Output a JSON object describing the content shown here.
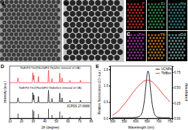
{
  "panel_labels": [
    "A",
    "B",
    "C",
    "D",
    "E"
  ],
  "eds_maps": [
    {
      "element": "F",
      "color": "#e0302a"
    },
    {
      "element": "Er",
      "color": "#3aa655"
    },
    {
      "element": "Na",
      "color": "#3f8f8f"
    },
    {
      "element": "Tm",
      "color": "#b03cb0"
    },
    {
      "element": "Yb",
      "color": "#e08a20"
    },
    {
      "element": "Gd",
      "color": "#7fb0b0"
    }
  ],
  "chart_data": [
    {
      "type": "line",
      "x_label": "2θ (degree)",
      "y_label": "Intensity (a.u.)",
      "xlim": [
        10,
        80
      ],
      "ylim": [
        0,
        11
      ],
      "xticks": [
        10,
        20,
        30,
        40,
        50,
        60,
        70,
        80
      ],
      "tick_labels": "x",
      "series": [
        {
          "name": "NaErF4:Tm@NaGdF4:Yb(after removal of OA)",
          "color": "#e8251f",
          "x": [
            10,
            16.5,
            17.2,
            18,
            29.5,
            30,
            30.4,
            30.8,
            31.3,
            34.3,
            34.8,
            35.3,
            43,
            43.5,
            44,
            46,
            46.5,
            47,
            52.7,
            53.2,
            53.7,
            54.7,
            55.2,
            55.7,
            61.5,
            62,
            62.5,
            70.5,
            71,
            71.5,
            80
          ],
          "values": [
            7.5,
            7.5,
            8.5,
            7.5,
            7.5,
            9.6,
            8.1,
            9.1,
            7.5,
            7.5,
            8.8,
            7.5,
            7.5,
            10.1,
            7.5,
            7.5,
            8.4,
            7.5,
            7.5,
            9.5,
            7.5,
            7.5,
            8.5,
            7.5,
            7.5,
            8.0,
            7.5,
            7.5,
            8.0,
            7.5,
            7.5
          ]
        },
        {
          "name": "NaErF4:Tm@NaGdF4:Yb(before removal of OA)",
          "color": "#000000",
          "x": [
            10,
            16.5,
            17.2,
            18,
            29.5,
            30,
            30.4,
            30.8,
            31.3,
            34.3,
            34.8,
            35.3,
            43,
            43.5,
            44,
            46,
            46.5,
            47,
            52.7,
            53.2,
            53.7,
            54.7,
            55.2,
            55.7,
            61.5,
            62,
            62.5,
            70.5,
            71,
            71.5,
            80
          ],
          "values": [
            3.3,
            3.3,
            4.3,
            3.3,
            3.3,
            5.4,
            3.9,
            4.9,
            3.3,
            3.3,
            4.6,
            3.3,
            3.3,
            5.9,
            3.3,
            3.3,
            4.2,
            3.3,
            3.3,
            5.3,
            3.3,
            3.3,
            4.3,
            3.3,
            3.3,
            3.8,
            3.3,
            3.3,
            3.8,
            3.3,
            3.3
          ]
        },
        {
          "name": "JCPDS 27-0689",
          "type": "bar",
          "color": "#000000",
          "x": [
            17.2,
            30.0,
            30.8,
            34.8,
            43.5,
            46.5,
            53.2,
            55.2,
            62.0,
            71.0
          ],
          "values": [
            1.0,
            1.8,
            1.5,
            0.9,
            2.0,
            0.7,
            1.4,
            0.6,
            0.3,
            0.4
          ]
        }
      ]
    },
    {
      "type": "line",
      "x_label": "Wavelength (nm)",
      "y_label": "Relative fluorescence (10⁴ a.u.)",
      "y2_label": "Absorbance",
      "xlim": [
        490,
        760
      ],
      "ylim": [
        0,
        1.6
      ],
      "y2lim": [
        0,
        0.85
      ],
      "xticks": [
        500,
        550,
        600,
        650,
        700,
        750
      ],
      "yticks": [
        {
          "value": 0,
          "label": "0.0"
        },
        {
          "value": 0.5,
          "label": "0.5"
        },
        {
          "value": 1,
          "label": "1.0"
        },
        {
          "value": 1.5,
          "label": "1.5"
        }
      ],
      "y2ticks": [
        {
          "value": 0,
          "label": "0.00"
        },
        {
          "value": 0.25,
          "label": "0.25"
        },
        {
          "value": 0.5,
          "label": "0.50"
        },
        {
          "value": 0.75,
          "label": "0.75"
        }
      ],
      "legend": "top-right",
      "series": [
        {
          "name": "UCNPs",
          "color": "#000000",
          "x": [
            500,
            520,
            540,
            560,
            580,
            600,
            610,
            620,
            630,
            640,
            645,
            650,
            655,
            660,
            665,
            670,
            680,
            690,
            700,
            720,
            740,
            750
          ],
          "values": [
            0.02,
            0.02,
            0.02,
            0.02,
            0.02,
            0.03,
            0.04,
            0.07,
            0.2,
            0.6,
            0.95,
            1.3,
            1.45,
            1.3,
            0.95,
            0.6,
            0.2,
            0.06,
            0.03,
            0.02,
            0.02,
            0.02
          ]
        },
        {
          "name": "TMBox",
          "color": "#e8251f",
          "axis": "y2",
          "x": [
            500,
            520,
            540,
            560,
            580,
            600,
            620,
            640,
            655,
            670,
            690,
            710,
            730,
            750
          ],
          "values": [
            0.05,
            0.1,
            0.18,
            0.27,
            0.37,
            0.47,
            0.55,
            0.61,
            0.62,
            0.6,
            0.53,
            0.44,
            0.35,
            0.27
          ]
        }
      ]
    }
  ]
}
